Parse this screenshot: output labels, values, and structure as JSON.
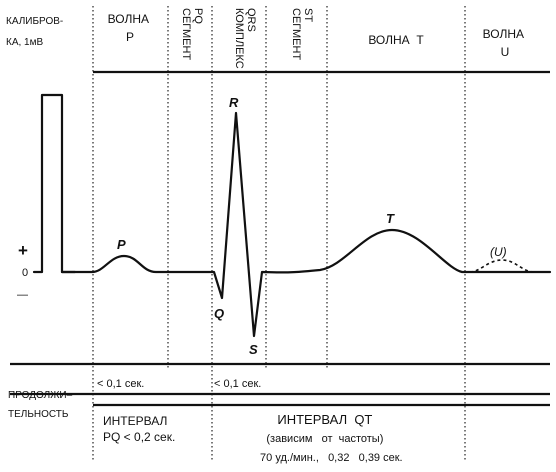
{
  "headers": {
    "calibration": [
      "КАЛИБРОВ-",
      "КА, 1мВ"
    ],
    "p_wave": [
      "ВОЛНА",
      "P"
    ],
    "pq_segment": [
      "СЕГМЕНТ",
      "PQ"
    ],
    "qrs_complex": [
      "КОМПЛЕКС",
      "QRS"
    ],
    "st_segment": [
      "СЕГМЕНТ",
      "ST"
    ],
    "t_wave": "ВОЛНА  T",
    "u_wave": [
      "ВОЛНА",
      "U"
    ]
  },
  "axis": {
    "plus": "+",
    "zero": "0",
    "minus": "—"
  },
  "peaks": {
    "p": "P",
    "q": "Q",
    "r": "R",
    "s": "S",
    "t": "T",
    "u": "(U)"
  },
  "durations": {
    "p_wave": "< 0,1 сек.",
    "qrs": "< 0,1 сек."
  },
  "bottom": {
    "duration_label": [
      "ПРОДОЛЖИ–",
      "ТЕЛЬНОСТЬ"
    ],
    "pq_interval": [
      "ИНТЕРВАЛ",
      "PQ < 0,2 сек."
    ],
    "qt_interval": [
      "ИНТЕРВАЛ  QT",
      "(зависим   от  частоты)",
      "70 уд./мин.,   0,32   0,39 сек."
    ]
  }
}
